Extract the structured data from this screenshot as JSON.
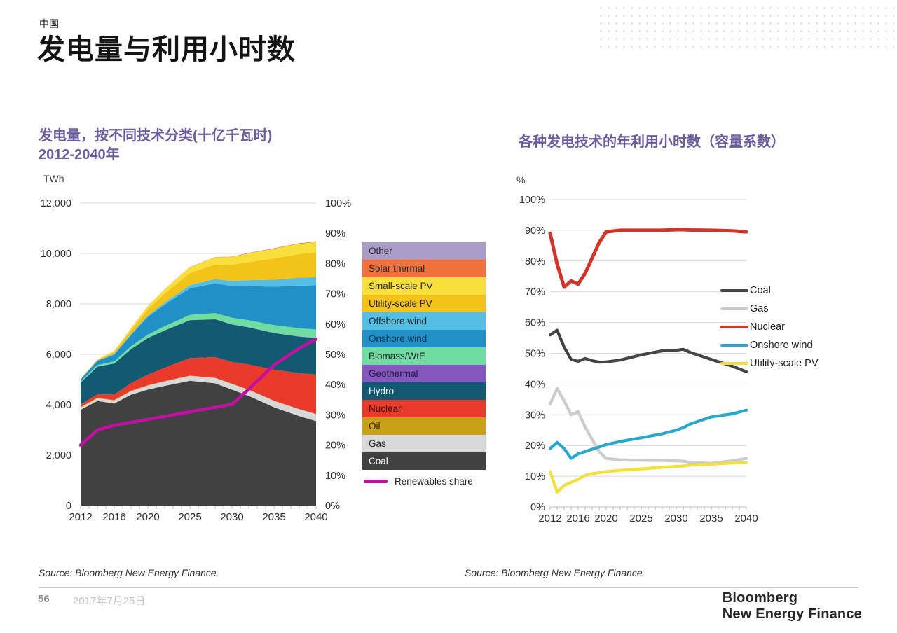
{
  "page": {
    "eyebrow": "中国",
    "title": "发电量与利用小时数"
  },
  "left_chart": {
    "title_line1": "发电量，按不同技术分类(十亿千瓦时)",
    "title_line2": "2012-2040年",
    "unit": "TWh",
    "y_ticks_left": [
      {
        "v": 12000,
        "label": "12,000"
      },
      {
        "v": 10000,
        "label": "10,000"
      },
      {
        "v": 8000,
        "label": "8,000"
      },
      {
        "v": 6000,
        "label": "6,000"
      },
      {
        "v": 4000,
        "label": "4,000"
      },
      {
        "v": 2000,
        "label": "2,000"
      },
      {
        "v": 0,
        "label": "0"
      }
    ],
    "y_ticks_right": [
      {
        "p": 100,
        "label": "100%"
      },
      {
        "p": 90,
        "label": "90%"
      },
      {
        "p": 80,
        "label": "80%"
      },
      {
        "p": 70,
        "label": "70%"
      },
      {
        "p": 60,
        "label": "60%"
      },
      {
        "p": 50,
        "label": "50%"
      },
      {
        "p": 40,
        "label": "40%"
      },
      {
        "p": 30,
        "label": "30%"
      },
      {
        "p": 20,
        "label": "20%"
      },
      {
        "p": 10,
        "label": "10%"
      },
      {
        "p": 0,
        "label": "0%"
      }
    ],
    "x_ticks": [
      {
        "v": 2012,
        "label": "2012"
      },
      {
        "v": 2016,
        "label": "2016"
      },
      {
        "v": 2020,
        "label": "2020"
      },
      {
        "v": 2025,
        "label": "2025"
      },
      {
        "v": 2030,
        "label": "2030"
      },
      {
        "v": 2035,
        "label": "2035"
      },
      {
        "v": 2040,
        "label": "2040"
      }
    ],
    "legend": [
      {
        "label": "Other",
        "color": "#A99CC8",
        "text": "#262626"
      },
      {
        "label": "Solar thermal",
        "color": "#F0713C",
        "text": "#262626"
      },
      {
        "label": "Small-scale PV",
        "color": "#F9DF3B",
        "text": "#262626"
      },
      {
        "label": "Utility-scale PV",
        "color": "#F4C319",
        "text": "#262626"
      },
      {
        "label": "Offshore wind",
        "color": "#55BEE5",
        "text": "#262626"
      },
      {
        "label": "Onshore wind",
        "color": "#2090C6",
        "text": "#14324A"
      },
      {
        "label": "Biomass/WtE",
        "color": "#6FDCA2",
        "text": "#262626"
      },
      {
        "label": "Geothermal",
        "color": "#8558C0",
        "text": "#26173E"
      },
      {
        "label": "Hydro",
        "color": "#115A72",
        "text": "#FFFFFF"
      },
      {
        "label": "Nuclear",
        "color": "#E93A2B",
        "text": "#33120D"
      },
      {
        "label": "Oil",
        "color": "#C9A115",
        "text": "#262626"
      },
      {
        "label": "Gas",
        "color": "#D8D8D8",
        "text": "#262626"
      },
      {
        "label": "Coal",
        "color": "#414141",
        "text": "#FFFFFF"
      }
    ],
    "renewables_label": "Renewables share"
  },
  "right_chart": {
    "title": "各种发电技术的年利用小时数（容量系数）",
    "unit": "%",
    "y_ticks": [
      {
        "p": 100,
        "label": "100%"
      },
      {
        "p": 90,
        "label": "90%"
      },
      {
        "p": 80,
        "label": "80%"
      },
      {
        "p": 70,
        "label": "70%"
      },
      {
        "p": 60,
        "label": "60%"
      },
      {
        "p": 50,
        "label": "50%"
      },
      {
        "p": 40,
        "label": "40%"
      },
      {
        "p": 30,
        "label": "30%"
      },
      {
        "p": 20,
        "label": "20%"
      },
      {
        "p": 10,
        "label": "10%"
      },
      {
        "p": 0,
        "label": "0%"
      }
    ],
    "x_ticks": [
      {
        "v": 2012,
        "label": "2012"
      },
      {
        "v": 2016,
        "label": "2016"
      },
      {
        "v": 2020,
        "label": "2020"
      },
      {
        "v": 2025,
        "label": "2025"
      },
      {
        "v": 2030,
        "label": "2030"
      },
      {
        "v": 2035,
        "label": "2035"
      },
      {
        "v": 2040,
        "label": "2040"
      }
    ],
    "legend": [
      {
        "label": "Coal",
        "color": "#454545"
      },
      {
        "label": "Gas",
        "color": "#CCCCCC"
      },
      {
        "label": "Nuclear",
        "color": "#CF352B"
      },
      {
        "label": "Onshore wind",
        "color": "#2AA7CB"
      },
      {
        "label": "Utility-scale PV",
        "color": "#F2E03C"
      }
    ]
  },
  "footer": {
    "source_left": "Source: Bloomberg New Energy Finance",
    "source_right": "Source: Bloomberg New Energy Finance",
    "page_number": "56",
    "date": "2017年7月25日",
    "logo_line1": "Bloomberg",
    "logo_line2": "New Energy Finance"
  },
  "chart_data": [
    {
      "type": "area",
      "stacked": true,
      "title": "发电量，按不同技术分类(十亿千瓦时) 2012-2040年",
      "ylabel": "TWh",
      "ylim_left": [
        0,
        12000
      ],
      "ylim_right_pct": [
        0,
        100
      ],
      "grid": true,
      "x": [
        2012,
        2014,
        2016,
        2018,
        2020,
        2022,
        2025,
        2028,
        2030,
        2032,
        2035,
        2038,
        2040
      ],
      "series": [
        {
          "name": "Coal",
          "color": "#414141",
          "values": [
            3800,
            4150,
            4050,
            4400,
            4600,
            4750,
            4950,
            4850,
            4600,
            4350,
            3900,
            3550,
            3350
          ]
        },
        {
          "name": "Gas",
          "color": "#D8D8D8",
          "values": [
            90,
            105,
            120,
            140,
            160,
            175,
            195,
            210,
            225,
            240,
            255,
            270,
            280
          ]
        },
        {
          "name": "Oil",
          "color": "#C9A115",
          "values": [
            25,
            22,
            20,
            17,
            15,
            13,
            10,
            8,
            7,
            6,
            5,
            4,
            3
          ]
        },
        {
          "name": "Nuclear",
          "color": "#E93A2B",
          "values": [
            100,
            135,
            215,
            300,
            420,
            530,
            700,
            820,
            870,
            1000,
            1230,
            1430,
            1570
          ]
        },
        {
          "name": "Hydro",
          "color": "#115A72",
          "values": [
            860,
            1100,
            1230,
            1350,
            1450,
            1480,
            1500,
            1500,
            1480,
            1470,
            1455,
            1445,
            1440
          ]
        },
        {
          "name": "Geothermal",
          "color": "#8558C0",
          "values": [
            2,
            2,
            3,
            4,
            5,
            6,
            7,
            8,
            9,
            10,
            11,
            12,
            12
          ]
        },
        {
          "name": "Biomass/WtE",
          "color": "#6FDCA2",
          "values": [
            40,
            60,
            85,
            110,
            135,
            165,
            205,
            240,
            260,
            280,
            305,
            325,
            330
          ]
        },
        {
          "name": "Onshore wind",
          "color": "#2090C6",
          "values": [
            95,
            170,
            270,
            450,
            700,
            850,
            1050,
            1180,
            1260,
            1350,
            1520,
            1690,
            1750
          ]
        },
        {
          "name": "Offshore wind",
          "color": "#55BEE5",
          "values": [
            5,
            10,
            20,
            35,
            55,
            85,
            125,
            170,
            200,
            235,
            280,
            315,
            330
          ]
        },
        {
          "name": "Utility-scale PV",
          "color": "#F4C319",
          "values": [
            5,
            30,
            80,
            150,
            250,
            350,
            480,
            580,
            640,
            720,
            840,
            940,
            980
          ]
        },
        {
          "name": "Small-scale PV",
          "color": "#F9DF3B",
          "values": [
            3,
            15,
            45,
            80,
            120,
            170,
            235,
            280,
            310,
            345,
            385,
            405,
            410
          ]
        },
        {
          "name": "Solar thermal",
          "color": "#F0713C",
          "values": [
            1,
            1,
            2,
            3,
            5,
            6,
            8,
            10,
            12,
            14,
            16,
            18,
            20
          ]
        },
        {
          "name": "Other",
          "color": "#A99CC8",
          "values": [
            1,
            1,
            1,
            2,
            2,
            3,
            3,
            4,
            4,
            5,
            5,
            5,
            5
          ]
        }
      ],
      "overlay_line": {
        "name": "Renewables share",
        "color": "#C011A2",
        "axis": "right_percent",
        "values_pct": [
          20,
          25,
          26.5,
          27.5,
          28.5,
          29.5,
          31,
          32.5,
          33.5,
          38.5,
          46.5,
          52,
          55
        ]
      }
    },
    {
      "type": "line",
      "title": "各种发电技术的年利用小时数（容量系数）",
      "ylabel": "%",
      "ylim": [
        0,
        100
      ],
      "grid": true,
      "legend_position": "right",
      "x": [
        2012,
        2013,
        2014,
        2015,
        2016,
        2017,
        2018,
        2019,
        2020,
        2022,
        2025,
        2028,
        2030,
        2031,
        2032,
        2035,
        2038,
        2040
      ],
      "series": [
        {
          "name": "Coal",
          "color": "#454545",
          "values": [
            56,
            57.5,
            52,
            48,
            47.4,
            48.3,
            47.6,
            47.1,
            47.2,
            47.8,
            49.5,
            50.8,
            51,
            51.3,
            50.3,
            48,
            45.8,
            44
          ]
        },
        {
          "name": "Gas",
          "color": "#CCCCCC",
          "values": [
            33.5,
            38.5,
            34.5,
            30,
            31,
            26,
            22,
            18,
            15.8,
            15.3,
            15.2,
            15.1,
            15,
            14.9,
            14.5,
            14.2,
            15,
            15.8
          ]
        },
        {
          "name": "Nuclear",
          "color": "#CF352B",
          "values": [
            89,
            79,
            71.5,
            73.5,
            72.5,
            76,
            81,
            86,
            89.5,
            90,
            90,
            90,
            90.2,
            90.2,
            90.1,
            90,
            89.8,
            89.5
          ]
        },
        {
          "name": "Onshore wind",
          "color": "#2AA7CB",
          "values": [
            19,
            21,
            19,
            15.8,
            17.3,
            18,
            18.8,
            19.5,
            20.3,
            21.3,
            22.5,
            23.8,
            25,
            25.8,
            27,
            29.3,
            30.3,
            31.5
          ]
        },
        {
          "name": "Utility-scale PV",
          "color": "#F2E03C",
          "values": [
            11.5,
            4.8,
            7,
            8,
            9,
            10.3,
            10.8,
            11.2,
            11.5,
            11.9,
            12.4,
            12.9,
            13.2,
            13.3,
            13.6,
            13.9,
            14.3,
            14.4
          ]
        }
      ]
    }
  ]
}
